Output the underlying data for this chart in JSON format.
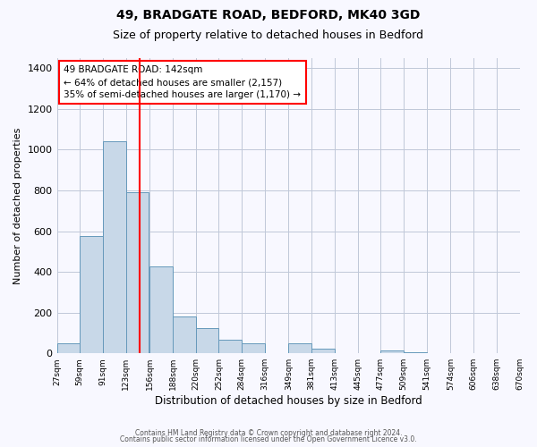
{
  "title": "49, BRADGATE ROAD, BEDFORD, MK40 3GD",
  "subtitle": "Size of property relative to detached houses in Bedford",
  "xlabel": "Distribution of detached houses by size in Bedford",
  "ylabel": "Number of detached properties",
  "bar_color": "#c8d8e8",
  "bar_edge_color": "#6699bb",
  "annotation_line_color": "red",
  "annotation_value": 142,
  "categories": [
    "27sqm",
    "59sqm",
    "91sqm",
    "123sqm",
    "156sqm",
    "188sqm",
    "220sqm",
    "252sqm",
    "284sqm",
    "316sqm",
    "349sqm",
    "381sqm",
    "413sqm",
    "445sqm",
    "477sqm",
    "509sqm",
    "541sqm",
    "574sqm",
    "606sqm",
    "638sqm",
    "670sqm"
  ],
  "bin_lefts": [
    27,
    59,
    91,
    123,
    156,
    188,
    220,
    252,
    284,
    316,
    349,
    381,
    413,
    445,
    477,
    509,
    541,
    574,
    606,
    638
  ],
  "bin_width": 32,
  "bar_heights": [
    50,
    575,
    1040,
    790,
    425,
    180,
    125,
    65,
    50,
    0,
    48,
    25,
    0,
    0,
    15,
    5,
    0,
    0,
    0,
    0
  ],
  "ylim": [
    0,
    1450
  ],
  "yticks": [
    0,
    200,
    400,
    600,
    800,
    1000,
    1200,
    1400
  ],
  "annotation_box_text": "49 BRADGATE ROAD: 142sqm\n← 64% of detached houses are smaller (2,157)\n35% of semi-detached houses are larger (1,170) →",
  "footer_line1": "Contains HM Land Registry data © Crown copyright and database right 2024.",
  "footer_line2": "Contains public sector information licensed under the Open Government Licence v3.0.",
  "bg_color": "#f8f8ff",
  "grid_color": "#c0c8d8"
}
